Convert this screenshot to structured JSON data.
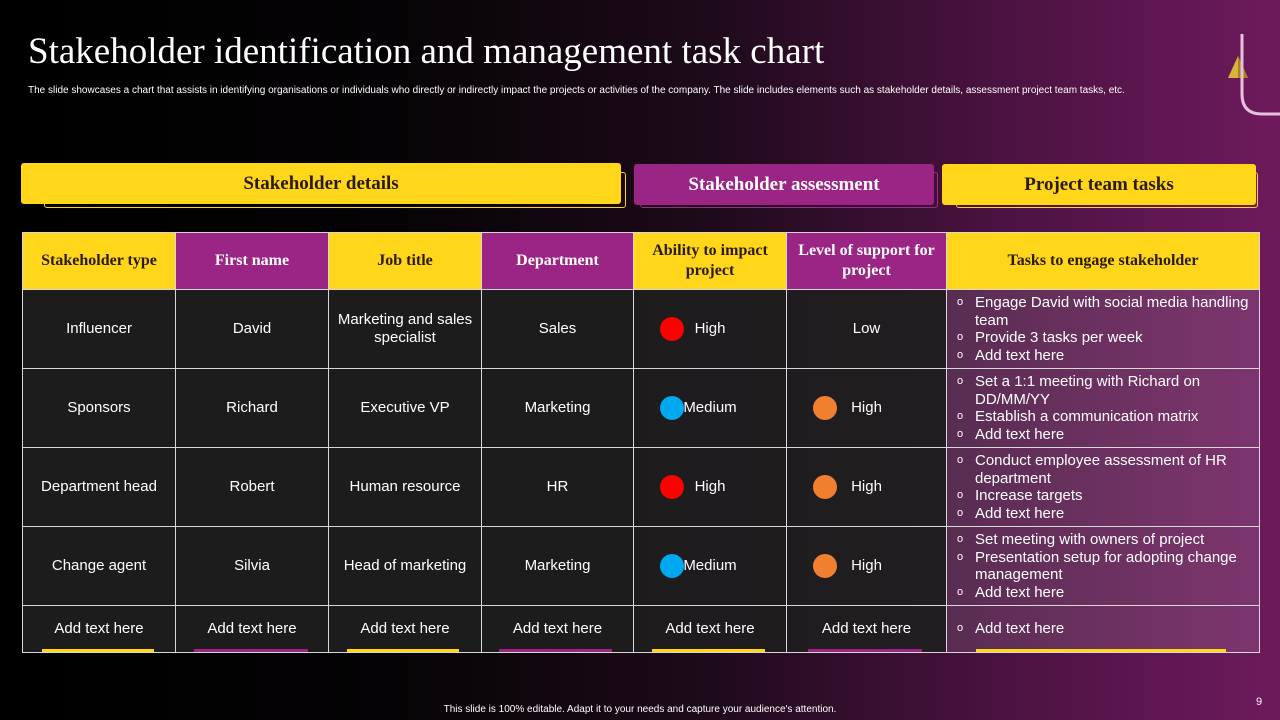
{
  "slide": {
    "title": "Stakeholder identification and management task chart",
    "subtitle": "The slide showcases a chart that assists in identifying organisations or individuals  who directly or indirectly impact the projects or activities of the company. The  slide includes elements such as stakeholder details, assessment project team tasks, etc.",
    "footer": "This slide is 100% editable.  Adapt it to your needs and capture your audience's attention.",
    "page_number": "9"
  },
  "sections": {
    "details": "Stakeholder details",
    "assessment": "Stakeholder assessment",
    "tasks": "Project team tasks"
  },
  "colors": {
    "yellow": "#ffd61a",
    "magenta": "#9a2584",
    "red_dot": "#ff0000",
    "blue_dot": "#00a8f0",
    "orange_dot": "#f08030"
  },
  "table": {
    "headers": [
      "Stakeholder type",
      "First name",
      "Job title",
      "Department",
      "Ability to impact project",
      "Level of support for project",
      "Tasks to engage stakeholder"
    ],
    "rows": [
      {
        "type": "Influencer",
        "first_name": "David",
        "job_title": "Marketing and sales specialist",
        "department": "Sales",
        "ability": "High",
        "ability_color": "red",
        "support": "Low",
        "support_color": "",
        "tasks": [
          "Engage David with social media handling team",
          "Provide 3 tasks per week",
          "Add text here"
        ]
      },
      {
        "type": "Sponsors",
        "first_name": "Richard",
        "job_title": "Executive VP",
        "department": "Marketing",
        "ability": "Medium",
        "ability_color": "blue",
        "support": "High",
        "support_color": "orange",
        "tasks": [
          "Set a 1:1 meeting with Richard on DD/MM/YY",
          "Establish a communication matrix",
          "Add text here"
        ]
      },
      {
        "type": "Department head",
        "first_name": "Robert",
        "job_title": "Human resource",
        "department": "HR",
        "ability": "High",
        "ability_color": "red",
        "support": "High",
        "support_color": "orange",
        "tasks": [
          "Conduct employee assessment of HR department",
          "Increase targets",
          "Add text here"
        ]
      },
      {
        "type": "Change agent",
        "first_name": "Silvia",
        "job_title": "Head of marketing",
        "department": "Marketing",
        "ability": "Medium",
        "ability_color": "blue",
        "support": "High",
        "support_color": "orange",
        "tasks": [
          "Set meeting with owners of project",
          "Presentation setup for adopting change management",
          "Add text here"
        ]
      },
      {
        "type": "Add text here",
        "first_name": "Add text here",
        "job_title": "Add text here",
        "department": "Add text here",
        "ability": "Add text here",
        "ability_color": "",
        "support": "Add text here",
        "support_color": "",
        "tasks": [
          "Add text here"
        ]
      }
    ]
  }
}
